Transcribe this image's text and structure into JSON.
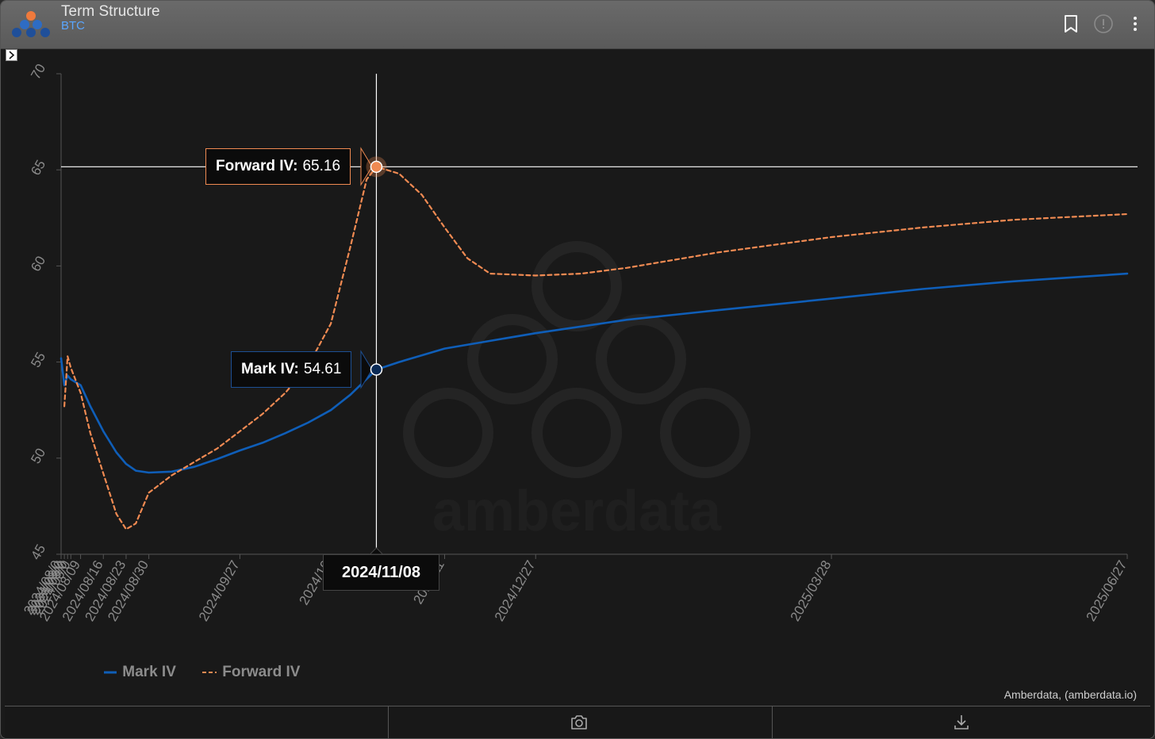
{
  "window": {
    "title": "Term Structure",
    "subtitle": "BTC",
    "icons": [
      "bookmark-icon",
      "info-icon",
      "more-vertical-icon"
    ]
  },
  "colors": {
    "mark_iv": "#0f5eb8",
    "forward_iv": "#f08a52",
    "background": "#191919",
    "axis": "#555555",
    "tick_text": "#8a8a8a",
    "crosshair": "#ffffff",
    "accent_subtitle": "#5aa6ff"
  },
  "tooltip": {
    "forward": {
      "label": "Forward IV:",
      "value": "65.16"
    },
    "mark": {
      "label": "Mark IV:",
      "value": "54.61"
    },
    "date": "2024/11/08"
  },
  "legend": {
    "items": [
      {
        "label": "Mark IV",
        "style": "solid"
      },
      {
        "label": "Forward IV",
        "style": "dashed"
      }
    ]
  },
  "attribution": "Amberdata, (amberdata.io)",
  "watermark": "amberdata",
  "footer": {
    "icons": [
      "camera-icon",
      "download-icon"
    ]
  },
  "chart_data": {
    "type": "line",
    "title": "",
    "xlabel": "",
    "ylabel": "",
    "ylim": [
      45,
      70
    ],
    "yticks": [
      45,
      50,
      55,
      60,
      65,
      70
    ],
    "xticks": [
      "2024/08/03",
      "2024/08/04",
      "2024/08/05",
      "2024/08/06",
      "2024/08/09",
      "2024/08/16",
      "2024/08/23",
      "2024/08/30",
      "2024/09/27",
      "2024/10/25",
      "2024/11/29",
      "2024/12/27",
      "2025/03/28",
      "2025/06/27"
    ],
    "xtick_labels_shown": [
      "2024/08/0",
      "2024/08/0",
      "2024/08/0",
      "2024/08/0",
      "2024/08/09",
      "2024/08/16",
      "2024/08/23",
      "2024/08/30",
      "2024/09/27",
      "2024/10",
      "2024/11",
      "2024/12/27",
      "2025/03/28",
      "2025/06/27"
    ],
    "grid": false,
    "legend": "bottom-left",
    "crosshair": {
      "x": "2024/11/08",
      "y": 65.16
    },
    "series": [
      {
        "name": "Mark IV",
        "dash": "solid",
        "points": [
          [
            "2024/08/03",
            55.2
          ],
          [
            "2024/08/04",
            53.8
          ],
          [
            "2024/08/05",
            54.3
          ],
          [
            "2024/08/06",
            54.1
          ],
          [
            "2024/08/09",
            53.8
          ],
          [
            "2024/08/12",
            52.7
          ],
          [
            "2024/08/16",
            51.4
          ],
          [
            "2024/08/20",
            50.3
          ],
          [
            "2024/08/23",
            49.7
          ],
          [
            "2024/08/26",
            49.35
          ],
          [
            "2024/08/30",
            49.25
          ],
          [
            "2024/09/06",
            49.3
          ],
          [
            "2024/09/13",
            49.55
          ],
          [
            "2024/09/20",
            49.95
          ],
          [
            "2024/09/27",
            50.4
          ],
          [
            "2024/10/04",
            50.8
          ],
          [
            "2024/10/11",
            51.3
          ],
          [
            "2024/10/18",
            51.85
          ],
          [
            "2024/10/25",
            52.5
          ],
          [
            "2024/10/31",
            53.3
          ],
          [
            "2024/11/08",
            54.61
          ],
          [
            "2024/11/15",
            55.0
          ],
          [
            "2024/11/22",
            55.35
          ],
          [
            "2024/11/29",
            55.7
          ],
          [
            "2024/12/13",
            56.1
          ],
          [
            "2024/12/27",
            56.5
          ],
          [
            "2025/01/24",
            57.2
          ],
          [
            "2025/02/21",
            57.7
          ],
          [
            "2025/03/28",
            58.3
          ],
          [
            "2025/04/25",
            58.8
          ],
          [
            "2025/05/23",
            59.2
          ],
          [
            "2025/06/27",
            59.6
          ]
        ]
      },
      {
        "name": "Forward IV",
        "dash": "dashed",
        "points": [
          [
            "2024/08/04",
            52.7
          ],
          [
            "2024/08/05",
            55.3
          ],
          [
            "2024/08/06",
            54.7
          ],
          [
            "2024/08/09",
            53.4
          ],
          [
            "2024/08/12",
            51.3
          ],
          [
            "2024/08/16",
            49.2
          ],
          [
            "2024/08/20",
            47.1
          ],
          [
            "2024/08/23",
            46.3
          ],
          [
            "2024/08/26",
            46.6
          ],
          [
            "2024/08/30",
            48.2
          ],
          [
            "2024/09/06",
            49.1
          ],
          [
            "2024/09/13",
            49.8
          ],
          [
            "2024/09/20",
            50.5
          ],
          [
            "2024/09/27",
            51.4
          ],
          [
            "2024/10/04",
            52.3
          ],
          [
            "2024/10/11",
            53.4
          ],
          [
            "2024/10/18",
            54.8
          ],
          [
            "2024/10/25",
            57.0
          ],
          [
            "2024/10/31",
            61.0
          ],
          [
            "2024/11/05",
            64.5
          ],
          [
            "2024/11/08",
            65.16
          ],
          [
            "2024/11/15",
            64.8
          ],
          [
            "2024/11/22",
            63.7
          ],
          [
            "2024/11/29",
            62.0
          ],
          [
            "2024/12/06",
            60.4
          ],
          [
            "2024/12/13",
            59.6
          ],
          [
            "2024/12/27",
            59.5
          ],
          [
            "2025/01/10",
            59.6
          ],
          [
            "2025/01/24",
            59.9
          ],
          [
            "2025/02/21",
            60.7
          ],
          [
            "2025/03/28",
            61.5
          ],
          [
            "2025/04/25",
            62.0
          ],
          [
            "2025/05/23",
            62.4
          ],
          [
            "2025/06/27",
            62.7
          ]
        ]
      }
    ]
  }
}
